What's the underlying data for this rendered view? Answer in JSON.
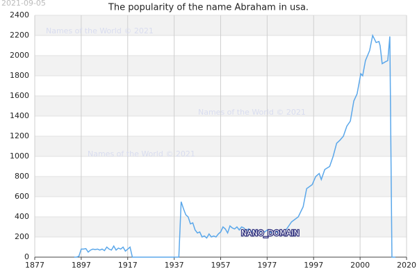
{
  "chart_data": {
    "type": "line",
    "title": "The popularity of the name Abraham in usa.",
    "date_stamp": "2021-09-05",
    "watermarks": [
      "Names of the World © 2021",
      "Names of the World © 2021",
      "Names of the World © 2021"
    ],
    "annotation": "NANO_DOMAIN",
    "xlim": [
      1877,
      2037
    ],
    "xticks": [
      1877,
      1897,
      1917,
      1937,
      1957,
      1977,
      1997,
      {
        "value": 2017,
        "label": "2000"
      },
      {
        "value": 2037,
        "label": "2020"
      }
    ],
    "ylim": [
      0,
      2400
    ],
    "yticks": [
      0,
      200,
      400,
      600,
      800,
      1000,
      1200,
      1400,
      1600,
      1800,
      2000,
      2200,
      2400
    ],
    "grid": true,
    "series": [
      {
        "color": "#5aa7ea",
        "x": [
          1894,
          1895,
          1896,
          1897,
          1898,
          1899,
          1900,
          1901,
          1902,
          1903,
          1904,
          1905,
          1906,
          1907,
          1908,
          1909,
          1910,
          1911,
          1912,
          1913,
          1914,
          1915,
          1916,
          1917,
          1918,
          1919,
          1920,
          1921,
          1930,
          1939,
          1940,
          1941,
          1942,
          1943,
          1944,
          1945,
          1946,
          1947,
          1948,
          1949,
          1950,
          1951,
          1952,
          1953,
          1954,
          1955,
          1956,
          1957,
          1958,
          1959,
          1960,
          1961,
          1962,
          1963,
          1964,
          1965,
          1966,
          1967,
          1968,
          1969,
          1970,
          1971,
          1972,
          1973,
          1974,
          1975,
          1976,
          1977,
          1978,
          1979,
          1980,
          1981,
          1982,
          1983,
          1984.5,
          1987.5,
          1990.4,
          1992.5,
          1994,
          1996.4,
          1997.9,
          1999.4,
          2000.3,
          2001.8,
          2003.9,
          2005.4,
          2006.9,
          2008.3,
          2009.8,
          2011.3,
          2012.8,
          2014.3,
          2015.7,
          2017.3,
          2018.1,
          2019.3,
          2021.1,
          2022.4,
          2023.9,
          2025.1,
          2025.6,
          2026.5,
          2028,
          2028.9,
          2029.8,
          2030.7,
          2032.2
        ],
        "values": [
          0,
          0,
          10,
          80,
          80,
          85,
          50,
          70,
          80,
          75,
          80,
          70,
          80,
          65,
          100,
          80,
          70,
          110,
          70,
          90,
          80,
          100,
          60,
          80,
          100,
          0,
          0,
          0,
          0,
          0,
          550,
          480,
          420,
          400,
          330,
          340,
          270,
          240,
          250,
          200,
          210,
          190,
          230,
          200,
          210,
          200,
          230,
          250,
          300,
          280,
          240,
          310,
          290,
          280,
          300,
          270,
          300,
          290,
          260,
          280,
          250,
          270,
          260,
          240,
          250,
          260,
          250,
          270,
          250,
          240,
          260,
          250,
          240,
          260,
          250,
          350,
          400,
          500,
          680,
          720,
          800,
          830,
          770,
          870,
          900,
          1000,
          1130,
          1160,
          1200,
          1300,
          1350,
          1550,
          1620,
          1820,
          1800,
          1950,
          2050,
          2200,
          2130,
          2140,
          2100,
          1920,
          1940,
          1950,
          2190,
          0,
          0
        ]
      }
    ]
  }
}
